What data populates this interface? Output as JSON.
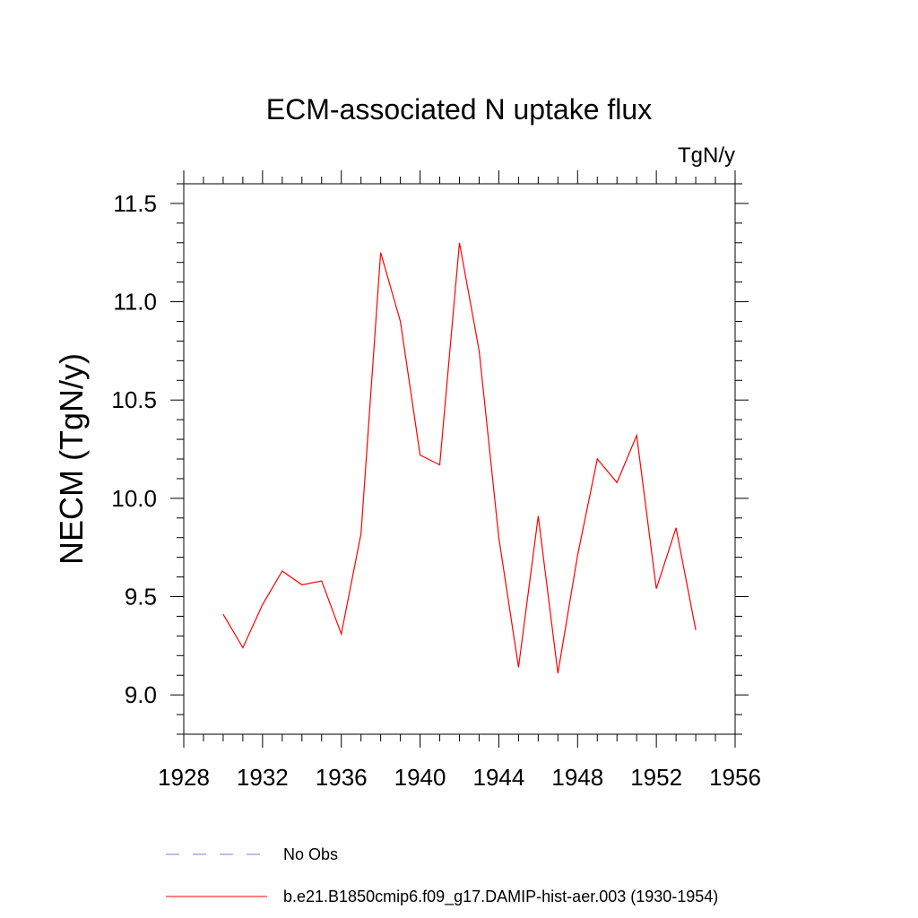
{
  "chart_data": {
    "type": "line",
    "title": "ECM-associated N uptake flux",
    "units": "TgN/y",
    "ylabel": "NECM  (TgN/y)",
    "xlabel": "",
    "xlim": [
      1928,
      1956
    ],
    "ylim": [
      8.8,
      11.6
    ],
    "xticks": [
      1928,
      1932,
      1936,
      1940,
      1944,
      1948,
      1952,
      1956
    ],
    "yticks": [
      9.0,
      9.5,
      10.0,
      10.5,
      11.0,
      11.5
    ],
    "xtick_labels": [
      "1928",
      "1932",
      "1936",
      "1940",
      "1944",
      "1948",
      "1952",
      "1956"
    ],
    "ytick_labels": [
      "9.0",
      "9.5",
      "10.0",
      "10.5",
      "11.0",
      "11.5"
    ],
    "grid": false,
    "legend_position": "bottom",
    "series": [
      {
        "name": "b.e21.B1850cmip6.f09_g17.DAMIP-hist-aer.003 (1930-1954)",
        "color": "#ff0000",
        "style": "solid",
        "x": [
          1930,
          1931,
          1932,
          1933,
          1934,
          1935,
          1936,
          1937,
          1938,
          1939,
          1940,
          1941,
          1942,
          1943,
          1944,
          1945,
          1946,
          1947,
          1948,
          1949,
          1950,
          1951,
          1952,
          1953,
          1954
        ],
        "y": [
          9.41,
          9.24,
          9.46,
          9.63,
          9.56,
          9.58,
          9.31,
          9.82,
          11.25,
          10.9,
          10.22,
          10.17,
          11.3,
          10.75,
          9.8,
          9.14,
          9.91,
          9.11,
          9.71,
          10.2,
          10.08,
          10.32,
          9.54,
          9.85,
          9.33
        ]
      },
      {
        "name": "No Obs",
        "color": "#7b7bd6",
        "style": "dashed",
        "x": [],
        "y": []
      }
    ]
  }
}
